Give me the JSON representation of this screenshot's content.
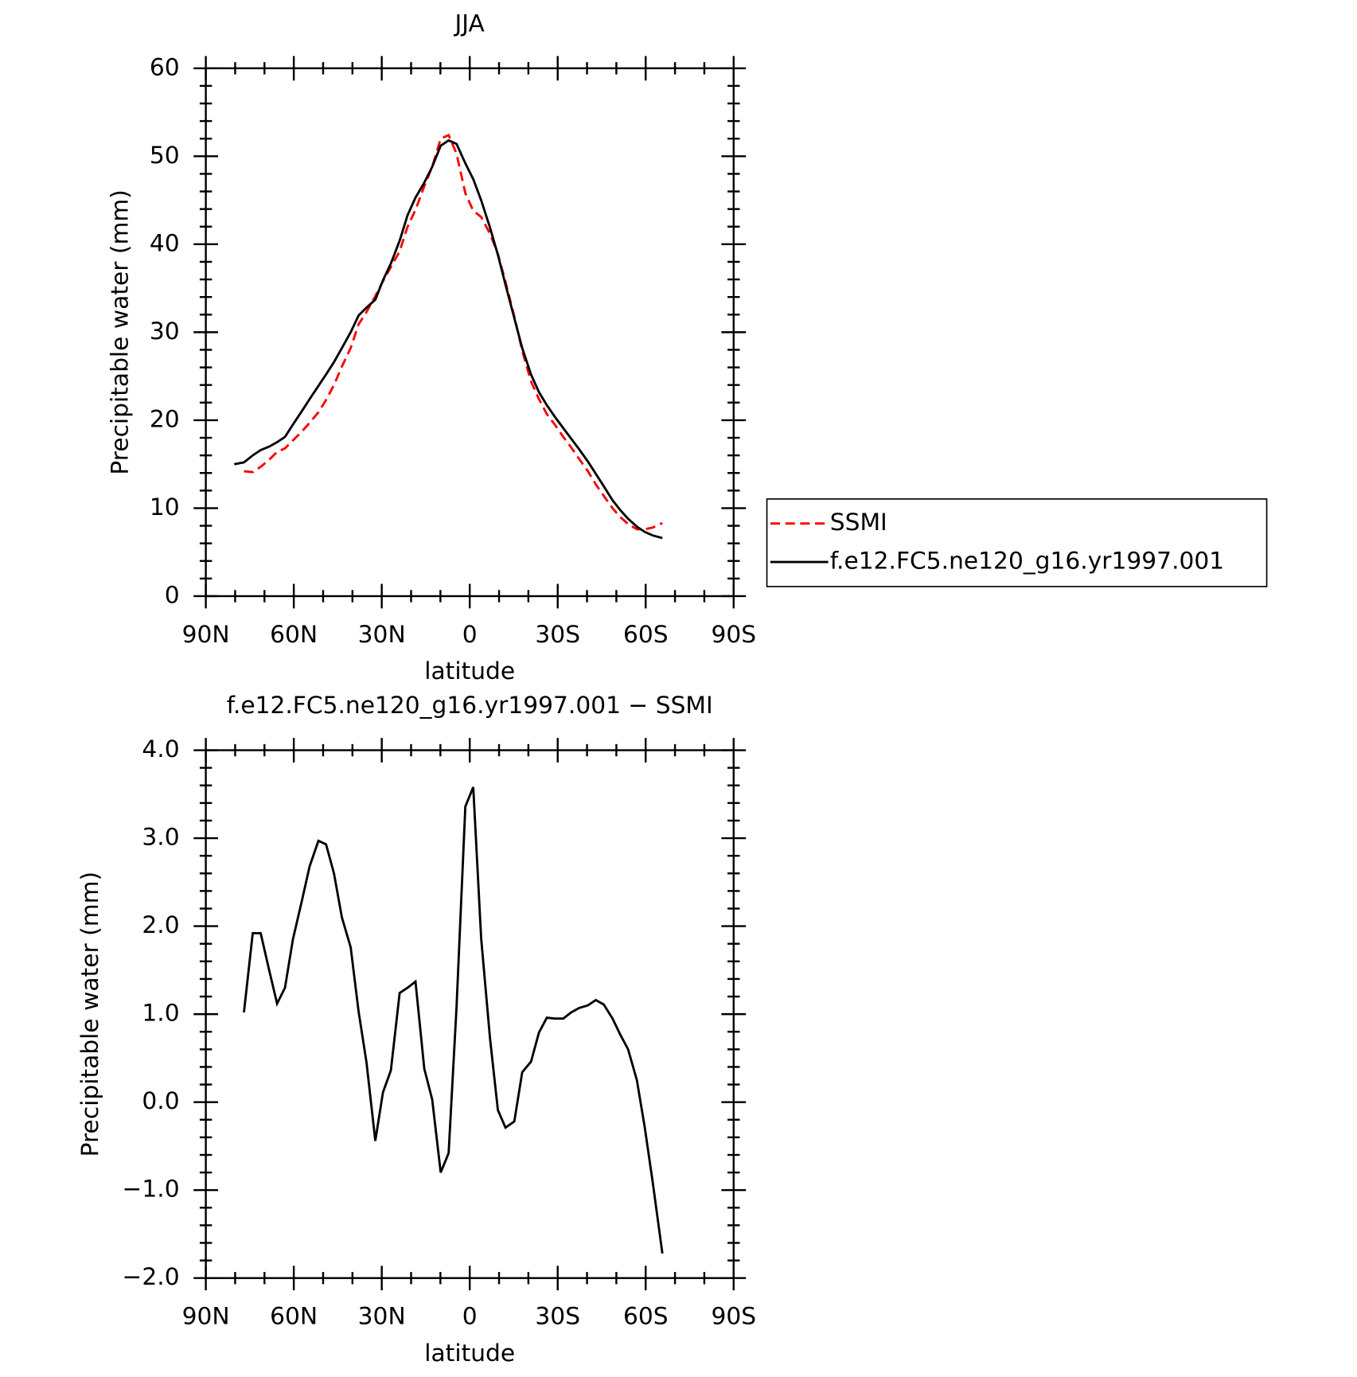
{
  "chart_data": [
    {
      "type": "line",
      "title": "JJA",
      "xlabel": "latitude",
      "ylabel": "Precipitable water (mm)",
      "x": [
        80.3,
        77.0,
        74.0,
        71.3,
        68.4,
        65.7,
        63.0,
        60.3,
        57.3,
        54.6,
        51.6,
        49.0,
        46.3,
        43.6,
        40.6,
        37.9,
        35.2,
        32.2,
        29.6,
        26.9,
        23.9,
        21.2,
        18.5,
        15.5,
        12.8,
        9.9,
        7.2,
        4.5,
        1.5,
        -1.2,
        -3.9,
        -6.9,
        -9.6,
        -12.2,
        -15.2,
        -17.9,
        -20.9,
        -23.6,
        -26.3,
        -29.0,
        -31.9,
        -34.6,
        -37.3,
        -40.3,
        -43.0,
        -45.7,
        -48.7,
        -51.3,
        -54.0,
        -57.0,
        -59.7,
        -62.4,
        -65.7
      ],
      "series": [
        {
          "name": "SSMI",
          "color": "#ff0000",
          "dashed": true,
          "values": [
            null,
            14.2,
            14.1,
            14.7,
            15.5,
            16.4,
            16.8,
            17.7,
            18.7,
            19.7,
            20.9,
            22.3,
            24.0,
            26.1,
            28.2,
            30.9,
            32.3,
            34.1,
            35.8,
            37.4,
            39.2,
            42.0,
            43.9,
            46.6,
            48.8,
            52.0,
            52.4,
            50.3,
            45.8,
            43.8,
            43.1,
            41.2,
            38.9,
            35.7,
            31.8,
            27.9,
            24.4,
            22.4,
            20.7,
            19.5,
            18.1,
            16.9,
            15.6,
            14.2,
            12.7,
            11.4,
            10.0,
            9.0,
            8.2,
            7.6,
            7.6,
            7.8,
            8.3
          ]
        },
        {
          "name": "f.e12.FC5.ne120_g16.yr1997.001",
          "color": "#000000",
          "dashed": false,
          "values": [
            15.0,
            15.2,
            16.0,
            16.6,
            17.0,
            17.5,
            18.1,
            19.5,
            21.0,
            22.4,
            23.9,
            25.2,
            26.6,
            28.2,
            30.0,
            31.9,
            32.8,
            33.7,
            35.9,
            37.8,
            40.4,
            43.3,
            45.3,
            47.0,
            48.8,
            51.2,
            51.8,
            51.4,
            49.2,
            47.4,
            45.0,
            41.9,
            38.8,
            35.4,
            31.6,
            28.2,
            25.2,
            23.2,
            21.7,
            20.4,
            19.1,
            17.9,
            16.7,
            15.3,
            13.9,
            12.5,
            10.9,
            9.8,
            8.8,
            7.9,
            7.3,
            6.9,
            6.6
          ]
        }
      ],
      "xlim": [
        90,
        -90
      ],
      "xticks": [
        {
          "value": 90,
          "label": "90N"
        },
        {
          "value": 60,
          "label": "60N"
        },
        {
          "value": 30,
          "label": "30N"
        },
        0,
        {
          "value": -30,
          "label": "30S"
        },
        {
          "value": -60,
          "label": "60S"
        },
        {
          "value": -90,
          "label": "90S"
        }
      ],
      "ylim": [
        0,
        60
      ],
      "yticks": [
        0,
        10,
        20,
        30,
        40,
        50,
        60
      ],
      "legend": "right"
    },
    {
      "type": "line",
      "title": "f.e12.FC5.ne120_g16.yr1997.001 − SSMI",
      "xlabel": "latitude",
      "ylabel": "Precipitable water (mm)",
      "x": [
        77.0,
        74.0,
        71.3,
        68.4,
        65.7,
        63.0,
        60.3,
        57.3,
        54.6,
        51.6,
        49.0,
        46.3,
        43.6,
        40.6,
        37.9,
        35.2,
        32.2,
        29.6,
        26.9,
        23.9,
        21.2,
        18.5,
        15.5,
        12.8,
        9.9,
        7.2,
        4.5,
        1.5,
        -1.2,
        -3.9,
        -6.9,
        -9.6,
        -12.2,
        -15.2,
        -17.9,
        -20.9,
        -23.6,
        -26.3,
        -29.0,
        -31.9,
        -34.6,
        -37.3,
        -40.3,
        -43.0,
        -45.7,
        -48.7,
        -51.3,
        -54.0,
        -57.0,
        -59.7,
        -62.4,
        -65.7
      ],
      "values": [
        1.02,
        1.92,
        1.92,
        1.5,
        1.12,
        1.3,
        1.85,
        2.28,
        2.68,
        2.97,
        2.93,
        2.6,
        2.1,
        1.76,
        1.03,
        0.45,
        -0.44,
        0.11,
        0.36,
        1.24,
        1.3,
        1.37,
        0.38,
        0.03,
        -0.8,
        -0.58,
        1.08,
        3.36,
        3.58,
        1.86,
        0.73,
        -0.09,
        -0.29,
        -0.22,
        0.34,
        0.46,
        0.79,
        0.96,
        0.95,
        0.95,
        1.02,
        1.07,
        1.1,
        1.16,
        1.11,
        0.95,
        0.77,
        0.6,
        0.25,
        -0.29,
        -0.91,
        -1.72
      ],
      "color": "#000000",
      "xlim": [
        90,
        -90
      ],
      "xticks": [
        {
          "value": 90,
          "label": "90N"
        },
        {
          "value": 60,
          "label": "60N"
        },
        {
          "value": 30,
          "label": "30N"
        },
        0,
        {
          "value": -30,
          "label": "30S"
        },
        {
          "value": -60,
          "label": "60S"
        },
        {
          "value": -90,
          "label": "90S"
        }
      ],
      "ylim": [
        -2,
        4
      ],
      "yticks": [
        {
          "value": -2,
          "label": "−2.0"
        },
        {
          "value": -1,
          "label": "−1.0"
        },
        {
          "value": 0,
          "label": "0.0"
        },
        {
          "value": 1,
          "label": "1.0"
        },
        {
          "value": 2,
          "label": "2.0"
        },
        {
          "value": 3,
          "label": "3.0"
        },
        {
          "value": 4,
          "label": "4.0"
        }
      ]
    }
  ]
}
